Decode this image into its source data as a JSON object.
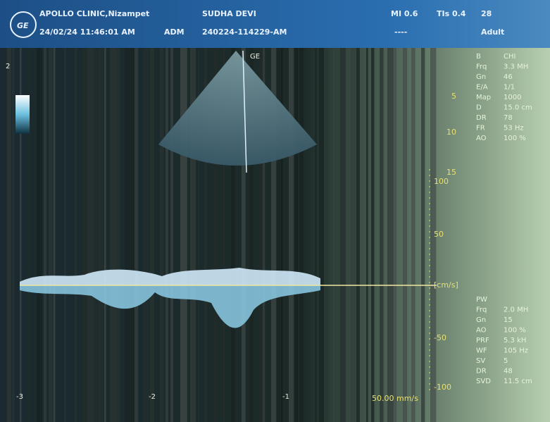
{
  "header": {
    "clinic": "APOLLO CLINIC,Nizampet",
    "datetime": "24/02/24 11:46:01 AM",
    "operator": "ADM",
    "patient": "SUDHA DEVI",
    "exam_id": "240224-114229-AM",
    "mi": "MI 0.6",
    "tis": "TIs 0.4",
    "preset_num": "28",
    "dashes": "----",
    "preset": "Adult"
  },
  "bmode_params": [
    [
      "B",
      "CHI"
    ],
    [
      "Frq",
      "3.3 MH"
    ],
    [
      "Gn",
      "46"
    ],
    [
      "E/A",
      "1/1"
    ],
    [
      "Map",
      "1000"
    ],
    [
      "D",
      "15.0 cm"
    ],
    [
      "DR",
      "78"
    ],
    [
      "FR",
      "53 Hz"
    ],
    [
      "AO",
      "100 %"
    ]
  ],
  "pw_params": [
    [
      "PW",
      ""
    ],
    [
      "Frq",
      "2.0 MH"
    ],
    [
      "Gn",
      "15"
    ],
    [
      "AO",
      "100 %"
    ],
    [
      "PRF",
      "5.3 kH"
    ],
    [
      "WF",
      "105 Hz"
    ],
    [
      "SV",
      "5"
    ],
    [
      "DR",
      "48"
    ],
    [
      "SVD",
      "11.5 cm"
    ]
  ],
  "depth_scale": [
    "5",
    "10",
    "15"
  ],
  "velocity_scale": [
    "100",
    "50",
    "[cm/s]",
    "-50",
    "-100"
  ],
  "time_axis": [
    "-3",
    "-2",
    "-1"
  ],
  "sweep_speed": "50.00 mm/s",
  "marker": "2"
}
